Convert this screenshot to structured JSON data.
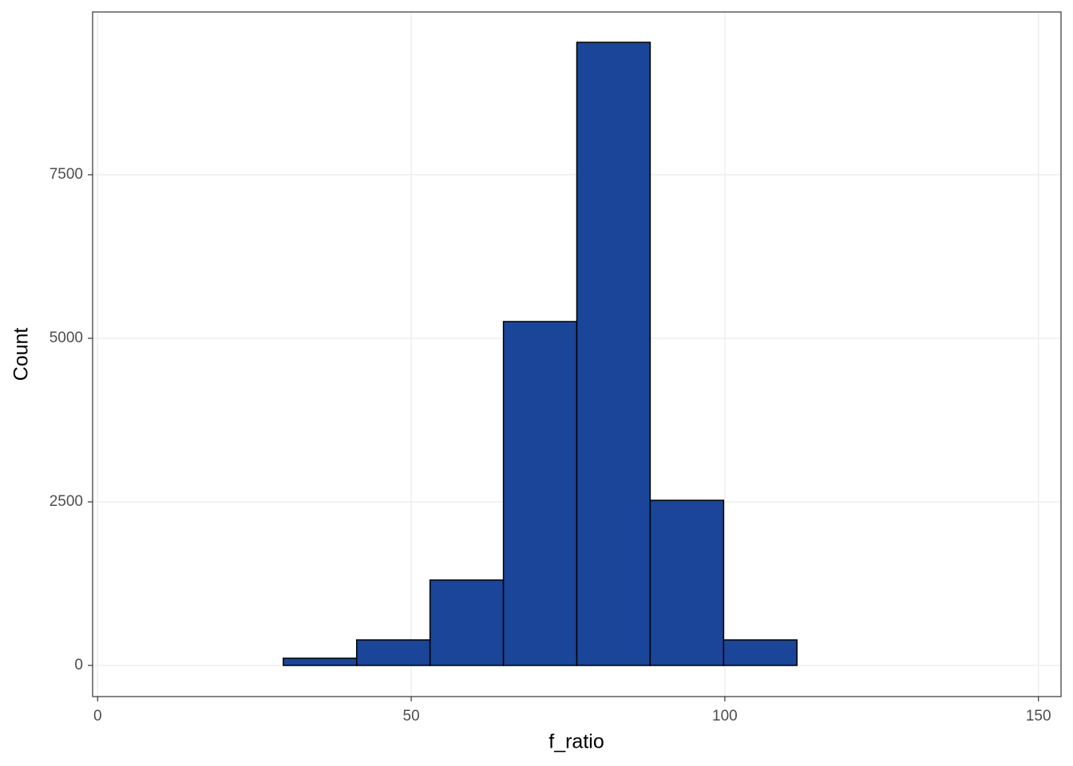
{
  "chart_data": {
    "type": "histogram",
    "x_label": "f_ratio",
    "y_label": "Count",
    "bins": [
      6.2,
      17.9,
      29.6,
      41.3,
      53.0,
      64.7,
      76.4,
      88.1,
      99.8,
      111.5,
      123.2,
      134.9,
      146.6
    ],
    "counts": [
      0,
      0,
      110,
      390,
      1305,
      5256,
      9524,
      2524,
      390,
      0,
      0,
      0
    ],
    "color": "#1a4599",
    "edge_color": "#000000",
    "xlim": [
      -0.8,
      153.6
    ],
    "xticks": [
      0,
      50,
      100,
      150
    ],
    "ylim": [
      -476,
      9988
    ],
    "yticks": [
      0,
      2500,
      5000,
      7500
    ],
    "grid": true
  }
}
